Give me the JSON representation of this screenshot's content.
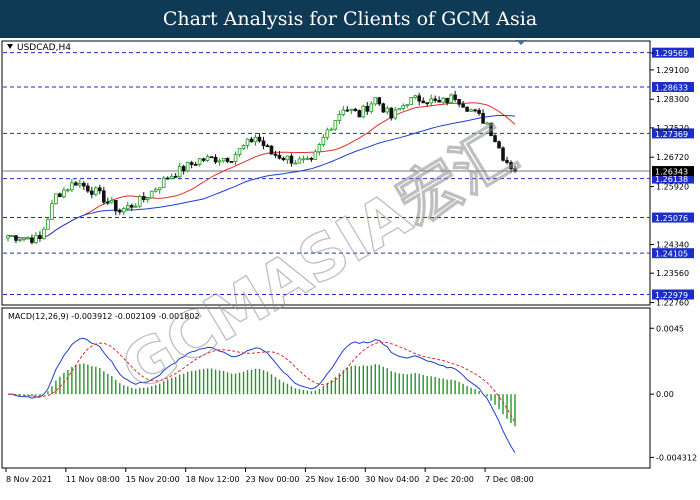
{
  "page": {
    "title": "Chart Analysis for Clients of GCM Asia"
  },
  "watermark": {
    "text": "GCMASIA宏汇"
  },
  "chart_data": [
    {
      "type": "candlestick",
      "symbol_label": "USDCAD,H4",
      "price_ticks": [
        1.2956,
        1.291,
        1.283,
        1.2752,
        1.2672,
        1.2592,
        1.2434,
        1.2356,
        1.2276
      ],
      "price_tick_labels": [
        "",
        "1.29100",
        "1.28300",
        "1.27520",
        "1.26720",
        "1.25920",
        "1.24340",
        "1.23560",
        "1.22760"
      ],
      "levels": [
        {
          "price": 1.29569,
          "label": "1.29569"
        },
        {
          "price": 1.28633,
          "label": "1.28633"
        },
        {
          "price": 1.27369,
          "label": "1.27369"
        },
        {
          "price": 1.26138,
          "label": "1.26138"
        },
        {
          "price": 1.25076,
          "label": "1.25076"
        },
        {
          "price": 1.24105,
          "label": "1.24105"
        },
        {
          "price": 1.22979,
          "label": "1.22979"
        }
      ],
      "current_price": {
        "price": 1.26343,
        "label": "1.26343"
      },
      "ylim": [
        1.2272,
        1.2986
      ],
      "x_tick_labels": [
        "8 Nov 2021",
        "11 Nov 08:00",
        "15 Nov 20:00",
        "18 Nov 12:00",
        "23 Nov 00:00",
        "25 Nov 16:00",
        "30 Nov 04:00",
        "2 Dec 20:00",
        "7 Dec 08:00"
      ],
      "x_tick_bars": [
        0,
        15,
        30,
        45,
        60,
        75,
        90,
        105,
        120
      ],
      "candle_count": 128,
      "close_anchors": [
        [
          0,
          1.2458
        ],
        [
          8,
          1.2448
        ],
        [
          12,
          1.2568
        ],
        [
          17,
          1.2605
        ],
        [
          22,
          1.2577
        ],
        [
          28,
          1.2525
        ],
        [
          34,
          1.2558
        ],
        [
          40,
          1.2618
        ],
        [
          48,
          1.2665
        ],
        [
          56,
          1.2672
        ],
        [
          62,
          1.2728
        ],
        [
          66,
          1.2682
        ],
        [
          72,
          1.2662
        ],
        [
          76,
          1.2655
        ],
        [
          80,
          1.2745
        ],
        [
          84,
          1.2808
        ],
        [
          88,
          1.2788
        ],
        [
          92,
          1.2832
        ],
        [
          96,
          1.278
        ],
        [
          100,
          1.2825
        ],
        [
          104,
          1.2833
        ],
        [
          108,
          1.2818
        ],
        [
          112,
          1.2838
        ],
        [
          116,
          1.28
        ],
        [
          120,
          1.2765
        ],
        [
          124,
          1.2675
        ],
        [
          127,
          1.2634
        ]
      ],
      "moving_averages": [
        {
          "color": "#e0302a",
          "period": 20
        },
        {
          "color": "#1f3fd2",
          "period": 50
        }
      ],
      "colors": {
        "up": "#1f9a1f",
        "down": "#111111",
        "levels": "#1b2ec8",
        "current": "#7a7a7a"
      }
    },
    {
      "type": "macd",
      "label": "MACD(12,26,9) -0.003912 -0.002109 -0.001802",
      "axis_ticks": [
        0.0045,
        0.0,
        -0.004312
      ],
      "axis_tick_labels": [
        "0.0045",
        "0.00",
        "-0.004312"
      ],
      "ylim": [
        -0.0049,
        0.0052
      ],
      "main_color": "#1f3fd2",
      "signal_color": "#e0302a",
      "histogram_color": "#1f9a1f"
    }
  ]
}
